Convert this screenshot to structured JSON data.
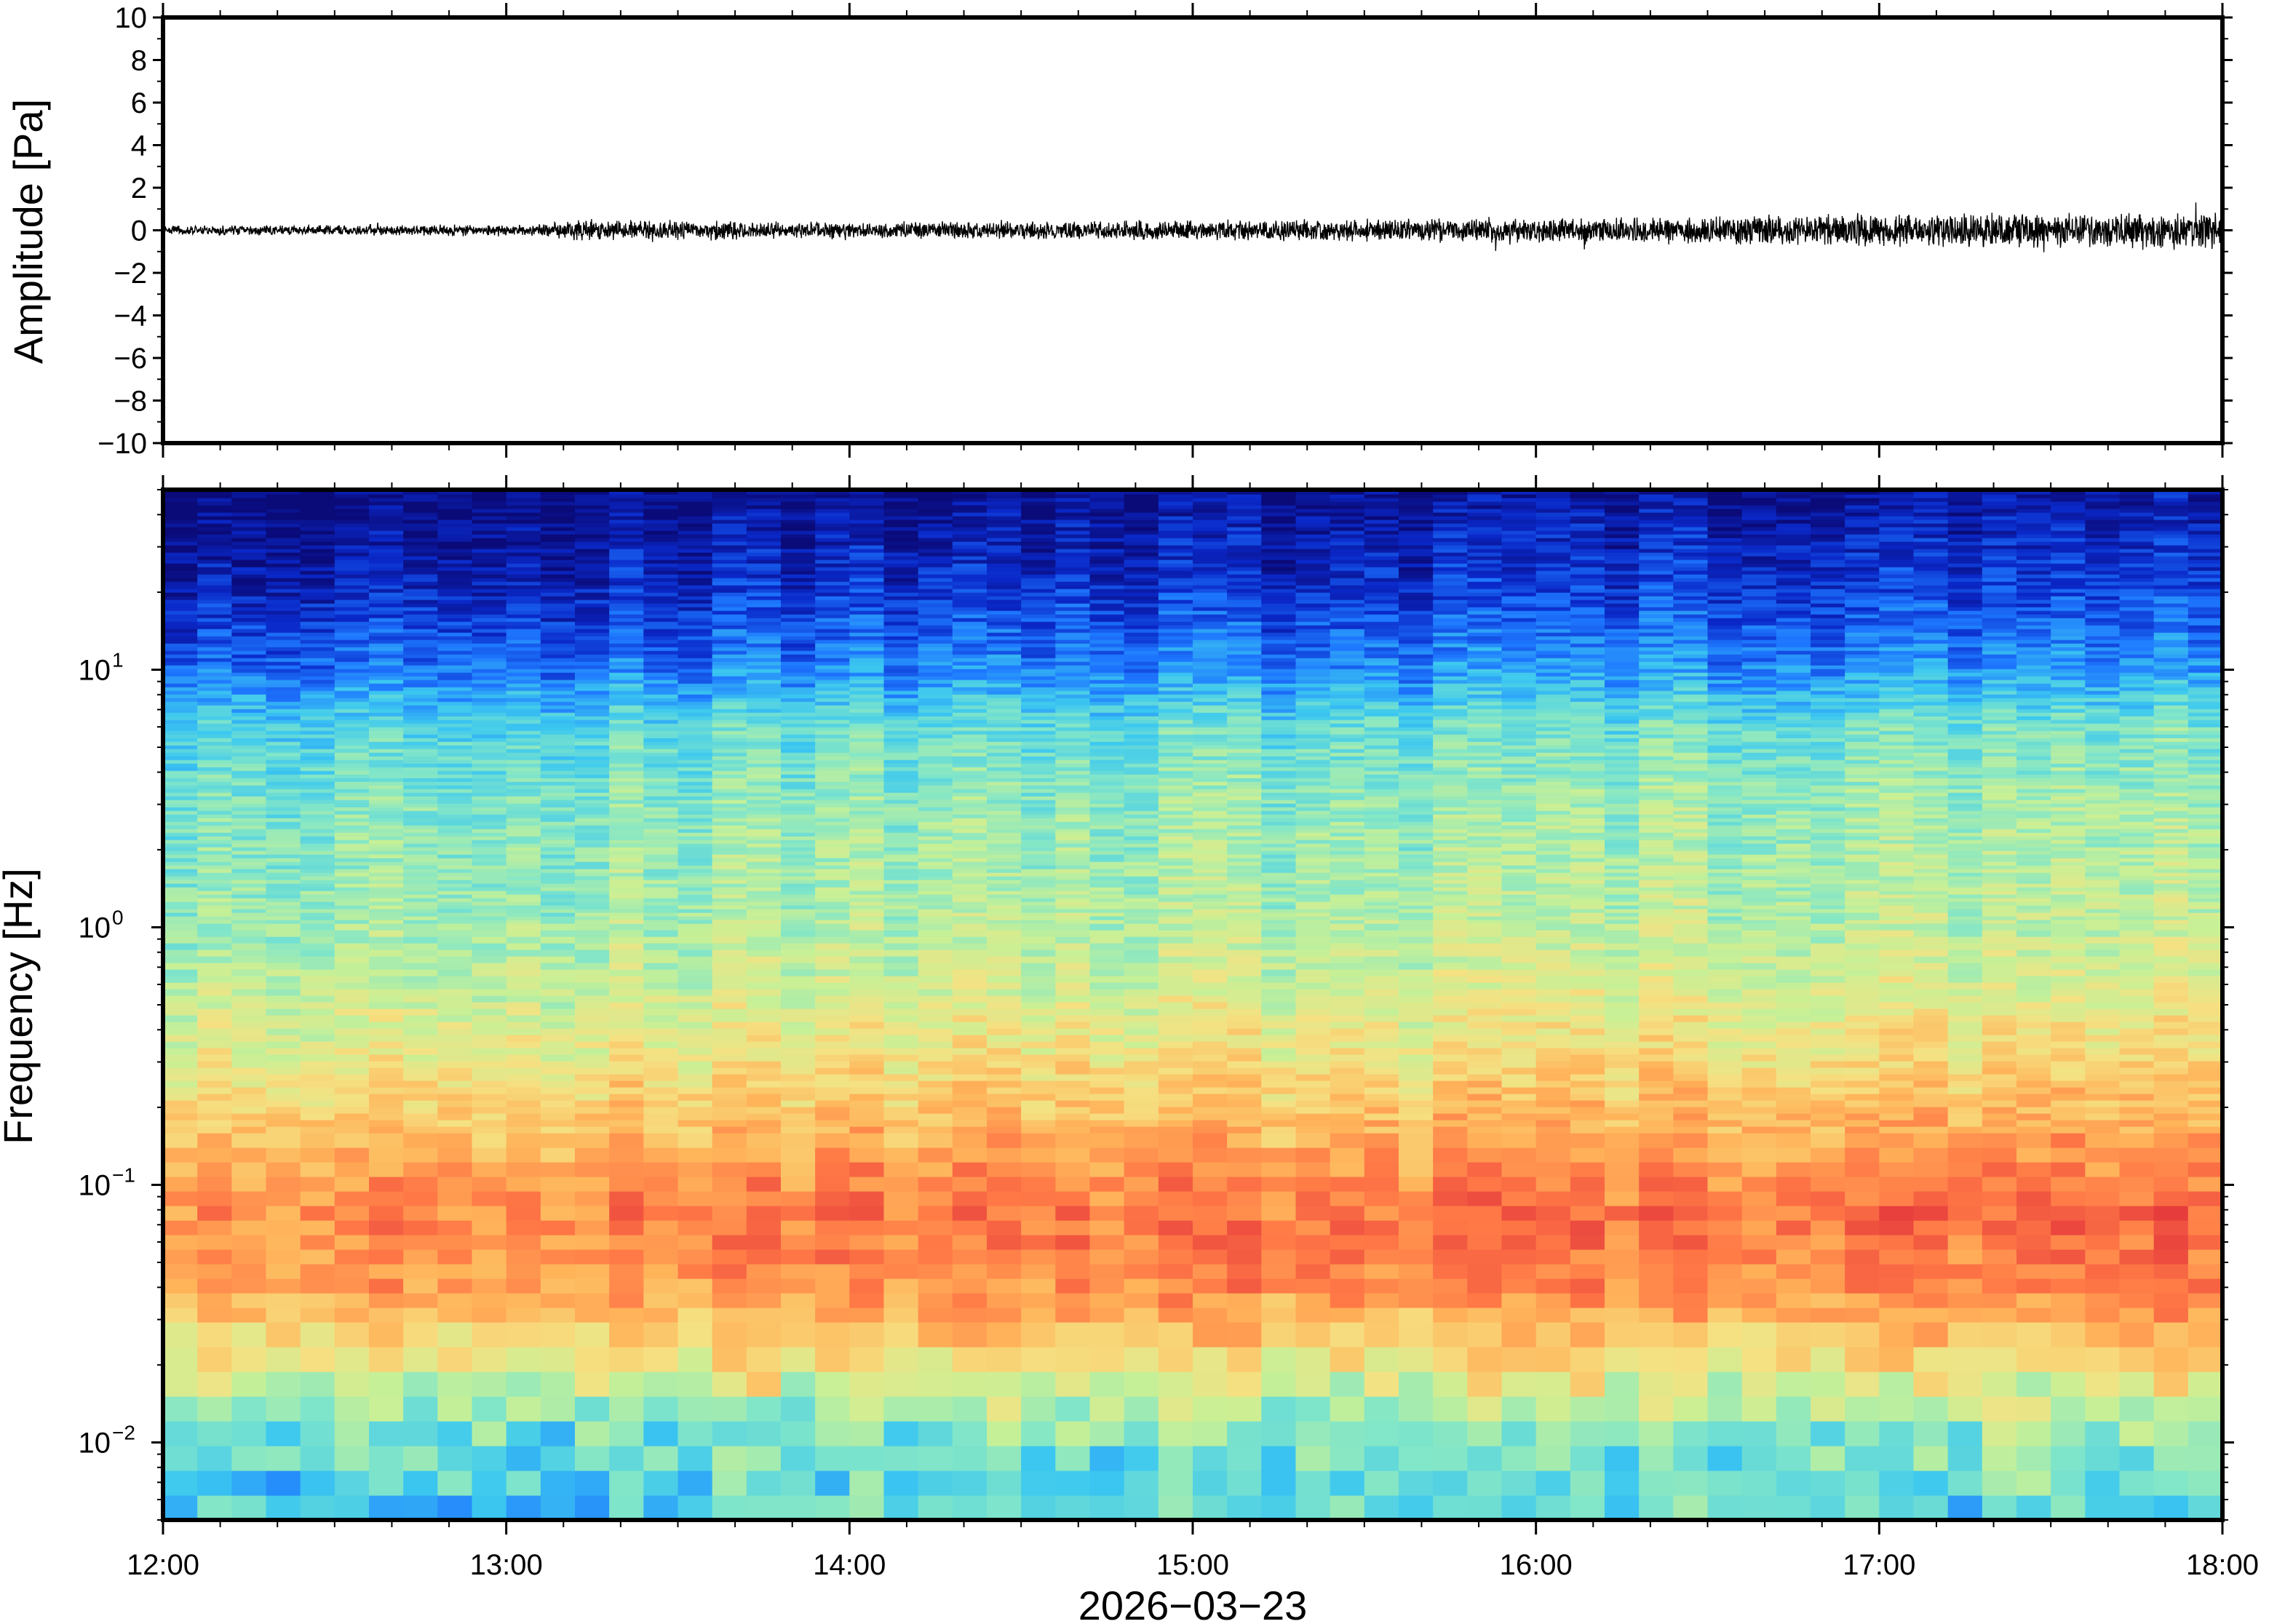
{
  "chart_data": [
    {
      "type": "line",
      "panel": "waveform",
      "title": "",
      "xlabel": "",
      "ylabel": "Amplitude [Pa]",
      "ylim": [
        -10,
        10
      ],
      "yticks": [
        10,
        8,
        6,
        4,
        2,
        0,
        -2,
        -4,
        -6,
        -8,
        -10
      ],
      "ytick_labels": [
        "10",
        "8",
        "6",
        "4",
        "2",
        "0",
        "−2",
        "−4",
        "−6",
        "−8",
        "−10"
      ],
      "xlim": [
        "12:00",
        "18:00"
      ],
      "grid": false,
      "legend": "none",
      "line_color": "#000000",
      "series": [
        {
          "hours": [
            "12:00",
            "13:00",
            "13:15",
            "14:00",
            "15:00",
            "15:30",
            "16:00",
            "16:30",
            "17:00",
            "17:30",
            "18:00"
          ],
          "envelope_pa": [
            0.2,
            0.25,
            0.5,
            0.35,
            0.45,
            0.5,
            0.55,
            0.65,
            0.7,
            0.75,
            0.8
          ]
        }
      ]
    },
    {
      "type": "heatmap",
      "panel": "spectrogram",
      "title": "",
      "xlabel": "2026−03−23",
      "ylabel": "Frequency [Hz]",
      "yscale": "log",
      "ylim": [
        0.005,
        50
      ],
      "yticks": [
        0.01,
        0.1,
        1,
        10
      ],
      "ytick_labels": [
        {
          "base": "10",
          "exp": "−2"
        },
        {
          "base": "10",
          "exp": "−1"
        },
        {
          "base": "10",
          "exp": "0"
        },
        {
          "base": "10",
          "exp": "1"
        }
      ],
      "xlim": [
        "12:00",
        "18:00"
      ],
      "xticks": [
        "12:00",
        "13:00",
        "14:00",
        "15:00",
        "16:00",
        "17:00",
        "18:00"
      ],
      "colormap": [
        "#0a0a78",
        "#0a28c8",
        "#1e78ff",
        "#3cc8f0",
        "#82e6c8",
        "#c8f096",
        "#f5e182",
        "#ffb45a",
        "#ff7846",
        "#e63c3c"
      ],
      "grid": false,
      "legend": "none",
      "level_profile": {
        "freq_hz": [
          0.005,
          0.01,
          0.02,
          0.04,
          0.08,
          0.15,
          0.3,
          0.6,
          1,
          3,
          6,
          10,
          20,
          50
        ],
        "level": [
          0.35,
          0.4,
          0.62,
          0.82,
          0.86,
          0.76,
          0.64,
          0.55,
          0.5,
          0.45,
          0.38,
          0.22,
          0.1,
          0.0
        ]
      }
    }
  ]
}
